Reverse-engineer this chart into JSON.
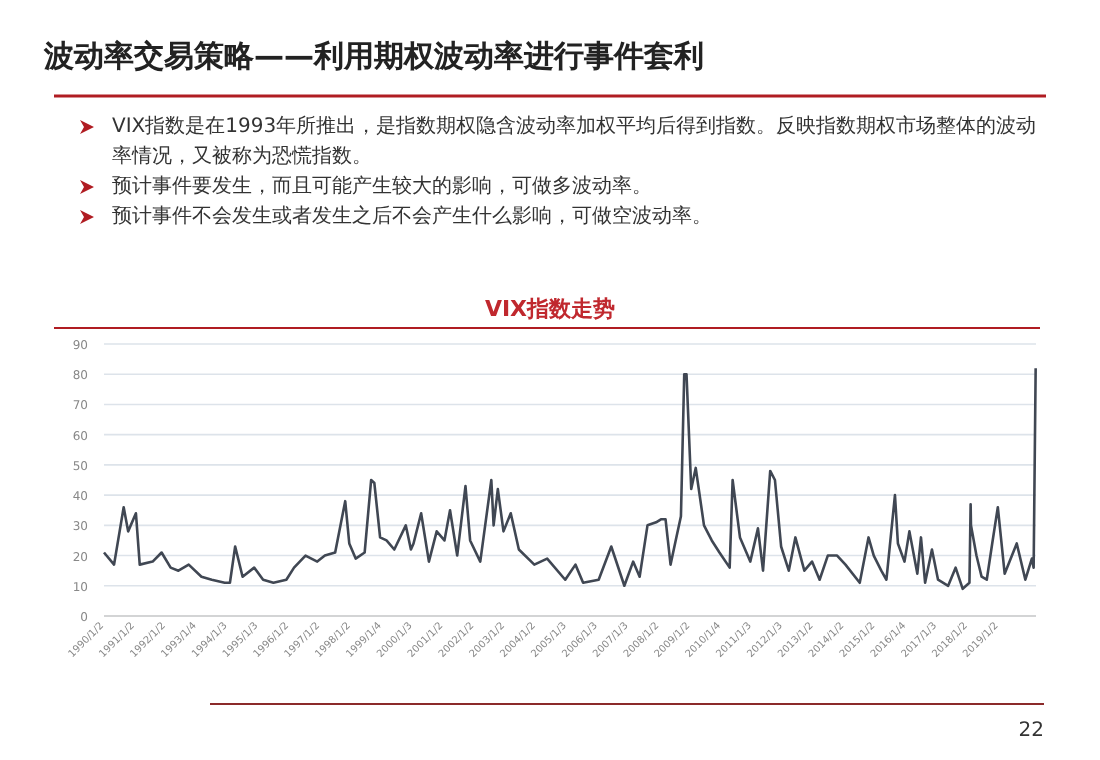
{
  "chart_data": {
    "type": "line",
    "title": "VIX指数走势",
    "subtitle": "波动率交易策略——利用期权波动率进行事件套利",
    "annotations": [
      "VIX指数是在1993年所推出，是指数期权隐含波动率加权平均后得到指数。反映指数期权市场整体的波动率情况，又被称为恐慌指数。",
      "预计事件要发生，而且可能产生较大的影响，可做多波动率。",
      "预计事件不会发生或者发生之后不会产生什么影响，可做空波动率。",
      "22"
    ],
    "x": [
      "1990-01-02",
      "1990-05-01",
      "1990-08-23",
      "1990-10-15",
      "1991-01-15",
      "1991-03-01",
      "1991-08-01",
      "1991-11-15",
      "1992-03-01",
      "1992-06-01",
      "1992-10-01",
      "1993-03-01",
      "1993-07-01",
      "1993-12-01",
      "1994-02-01",
      "1994-04-04",
      "1994-07-01",
      "1994-11-15",
      "1995-03-01",
      "1995-07-01",
      "1995-12-01",
      "1996-03-01",
      "1996-07-15",
      "1996-12-01",
      "1997-03-01",
      "1997-07-01",
      "1997-10-28",
      "1997-12-15",
      "1998-03-01",
      "1998-06-15",
      "1998-08-31",
      "1998-10-08",
      "1998-12-15",
      "1999-03-01",
      "1999-06-01",
      "1999-10-15",
      "1999-12-15",
      "2000-01-15",
      "2000-04-14",
      "2000-07-15",
      "2000-10-15",
      "2001-01-15",
      "2001-03-22",
      "2001-06-15",
      "2001-09-21",
      "2001-11-15",
      "2002-03-15",
      "2002-07-24",
      "2002-08-20",
      "2002-10-09",
      "2002-12-15",
      "2003-03-11",
      "2003-06-15",
      "2003-12-15",
      "2004-05-15",
      "2004-12-15",
      "2005-04-15",
      "2005-07-15",
      "2006-01-15",
      "2006-06-13",
      "2006-11-15",
      "2007-02-27",
      "2007-05-15",
      "2007-08-16",
      "2007-11-26",
      "2008-01-22",
      "2008-03-17",
      "2008-05-15",
      "2008-07-15",
      "2008-09-15",
      "2008-10-24",
      "2008-11-20",
      "2009-01-15",
      "2009-03-09",
      "2009-06-15",
      "2009-09-15",
      "2009-12-15",
      "2010-04-15",
      "2010-05-20",
      "2010-08-15",
      "2010-12-15",
      "2011-03-16",
      "2011-05-15",
      "2011-08-08",
      "2011-10-03",
      "2011-12-15",
      "2012-03-15",
      "2012-06-01",
      "2012-09-15",
      "2012-12-15",
      "2013-03-15",
      "2013-06-20",
      "2013-10-08",
      "2014-01-15",
      "2014-07-03",
      "2014-10-15",
      "2014-12-16",
      "2015-03-15",
      "2015-05-15",
      "2015-08-24",
      "2015-09-28",
      "2015-12-15",
      "2016-02-11",
      "2016-05-15",
      "2016-06-27",
      "2016-08-15",
      "2016-11-04",
      "2017-01-15",
      "2017-05-15",
      "2017-08-11",
      "2017-11-03",
      "2018-01-22",
      "2018-02-05",
      "2018-02-09",
      "2018-04-15",
      "2018-06-15",
      "2018-08-15",
      "2018-10-24",
      "2018-12-24",
      "2019-03-15",
      "2019-08-05",
      "2019-11-15",
      "2020-01-31",
      "2020-02-21",
      "2020-03-16"
    ],
    "series": [
      {
        "color": "#404753",
        "values": [
          21,
          17,
          36,
          28,
          34,
          17,
          18,
          21,
          16,
          15,
          17,
          13,
          12,
          11,
          11,
          23,
          13,
          16,
          12,
          11,
          12,
          16,
          20,
          18,
          20,
          21,
          38,
          24,
          19,
          21,
          45,
          44,
          26,
          25,
          22,
          30,
          22,
          24,
          34,
          18,
          28,
          25,
          35,
          20,
          43,
          25,
          18,
          45,
          30,
          42,
          28,
          34,
          22,
          17,
          19,
          12,
          17,
          11,
          12,
          23,
          10,
          18,
          13,
          30,
          31,
          32,
          32,
          17,
          25,
          33,
          80,
          80,
          42,
          49,
          30,
          25,
          21,
          16,
          45,
          26,
          18,
          29,
          15,
          48,
          45,
          23,
          15,
          26,
          15,
          18,
          12,
          20,
          20,
          17,
          11,
          26,
          20,
          15,
          12,
          40,
          24,
          18,
          28,
          14,
          26,
          11,
          22,
          12,
          10,
          16,
          9,
          11,
          37,
          30,
          20,
          13,
          12,
          25,
          36,
          14,
          24,
          12,
          19,
          16,
          82
        ]
      }
    ],
    "xlim": [
      "1990-01-02",
      "2020-03-20"
    ],
    "xticks": [
      {
        "value": "1990-01-02",
        "label": "1990/1/2"
      },
      {
        "value": "1991-01-02",
        "label": "1991/1/2"
      },
      {
        "value": "1992-01-02",
        "label": "1992/1/2"
      },
      {
        "value": "1993-01-04",
        "label": "1993/1/4"
      },
      {
        "value": "1994-01-03",
        "label": "1994/1/3"
      },
      {
        "value": "1995-01-03",
        "label": "1995/1/3"
      },
      {
        "value": "1996-01-02",
        "label": "1996/1/2"
      },
      {
        "value": "1997-01-02",
        "label": "1997/1/2"
      },
      {
        "value": "1998-01-02",
        "label": "1998/1/2"
      },
      {
        "value": "1999-01-04",
        "label": "1999/1/4"
      },
      {
        "value": "2000-01-03",
        "label": "2000/1/3"
      },
      {
        "value": "2001-01-02",
        "label": "2001/1/2"
      },
      {
        "value": "2002-01-02",
        "label": "2002/1/2"
      },
      {
        "value": "2003-01-02",
        "label": "2003/1/2"
      },
      {
        "value": "2004-01-02",
        "label": "2004/1/2"
      },
      {
        "value": "2005-01-03",
        "label": "2005/1/3"
      },
      {
        "value": "2006-01-03",
        "label": "2006/1/3"
      },
      {
        "value": "2007-01-03",
        "label": "2007/1/3"
      },
      {
        "value": "2008-01-02",
        "label": "2008/1/2"
      },
      {
        "value": "2009-01-02",
        "label": "2009/1/2"
      },
      {
        "value": "2010-01-04",
        "label": "2010/1/4"
      },
      {
        "value": "2011-01-03",
        "label": "2011/1/3"
      },
      {
        "value": "2012-01-03",
        "label": "2012/1/3"
      },
      {
        "value": "2013-01-02",
        "label": "2013/1/2"
      },
      {
        "value": "2014-01-02",
        "label": "2014/1/2"
      },
      {
        "value": "2015-01-02",
        "label": "2015/1/2"
      },
      {
        "value": "2016-01-04",
        "label": "2016/1/4"
      },
      {
        "value": "2017-01-03",
        "label": "2017/1/3"
      },
      {
        "value": "2018-01-02",
        "label": "2018/1/2"
      },
      {
        "value": "2019-01-02",
        "label": "2019/1/2"
      }
    ],
    "ylim": [
      0,
      90
    ],
    "yticks": [
      0,
      10,
      20,
      30,
      40,
      50,
      60,
      70,
      80,
      90
    ],
    "grid": "y"
  }
}
